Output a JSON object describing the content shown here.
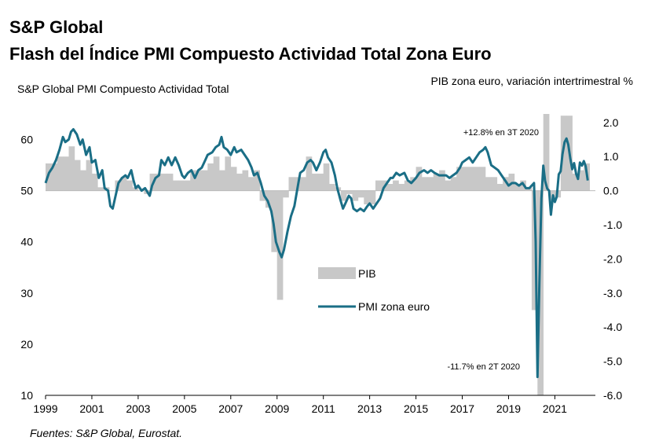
{
  "header": {
    "title": "S&P Global",
    "subtitle": "Flash del Índice PMI Compuesto Actividad Total Zona Euro"
  },
  "source": "Fuentes: S&P Global, Eurostat.",
  "chart_data": {
    "type": "bar+line",
    "left_axis_label": "S&P Global PMI  Compuesto  Actividad Total",
    "right_axis_label": "PIB  zona euro,  variación intertrimestral %",
    "left_axis": {
      "min": 10,
      "max": 65,
      "ticks": [
        10,
        20,
        30,
        40,
        50,
        60
      ]
    },
    "right_axis": {
      "min": -6.0,
      "max": 2.25,
      "ticks": [
        "2.0",
        "1.0",
        "0.0",
        "-1.0",
        "-2.0",
        "-3.0",
        "-4.0",
        "-5.0",
        "-6.0"
      ]
    },
    "x_axis": {
      "min": 1999,
      "max": 2022.75,
      "ticks": [
        "1999",
        "2001",
        "2003",
        "2005",
        "2007",
        "2009",
        "2011",
        "2013",
        "2015",
        "2017",
        "2019",
        "2021"
      ]
    },
    "legend": [
      {
        "key": "gdp",
        "label": "PIB",
        "color": "#c8c8c8"
      },
      {
        "key": "pmi",
        "label": "PMI zona euro",
        "color": "#1a6e86"
      }
    ],
    "annotations": [
      {
        "text": "+12.8%  en 3T 2020"
      },
      {
        "text": "-11.7%  en 2T 2020"
      }
    ],
    "series": [
      {
        "name": "PIB",
        "unit": "%",
        "points": [
          [
            1999.0,
            0.8
          ],
          [
            1999.25,
            0.8
          ],
          [
            1999.5,
            1.0
          ],
          [
            1999.75,
            1.0
          ],
          [
            2000.0,
            1.3
          ],
          [
            2000.25,
            0.9
          ],
          [
            2000.5,
            0.6
          ],
          [
            2000.75,
            0.9
          ],
          [
            2001.0,
            0.5
          ],
          [
            2001.25,
            0.1
          ],
          [
            2001.5,
            0.1
          ],
          [
            2001.75,
            0.0
          ],
          [
            2002.0,
            0.3
          ],
          [
            2002.25,
            0.4
          ],
          [
            2002.5,
            0.3
          ],
          [
            2002.75,
            0.1
          ],
          [
            2003.0,
            0.0
          ],
          [
            2003.25,
            -0.1
          ],
          [
            2003.5,
            0.5
          ],
          [
            2003.75,
            0.5
          ],
          [
            2004.0,
            0.5
          ],
          [
            2004.25,
            0.5
          ],
          [
            2004.5,
            0.3
          ],
          [
            2004.75,
            0.3
          ],
          [
            2005.0,
            0.3
          ],
          [
            2005.25,
            0.6
          ],
          [
            2005.5,
            0.6
          ],
          [
            2005.75,
            0.6
          ],
          [
            2006.0,
            0.8
          ],
          [
            2006.25,
            1.0
          ],
          [
            2006.5,
            0.6
          ],
          [
            2006.75,
            1.0
          ],
          [
            2007.0,
            0.7
          ],
          [
            2007.25,
            0.5
          ],
          [
            2007.5,
            0.6
          ],
          [
            2007.75,
            0.4
          ],
          [
            2008.0,
            0.6
          ],
          [
            2008.25,
            -0.3
          ],
          [
            2008.5,
            -0.5
          ],
          [
            2008.75,
            -1.8
          ],
          [
            2009.0,
            -3.2
          ],
          [
            2009.25,
            -0.2
          ],
          [
            2009.5,
            0.4
          ],
          [
            2009.75,
            0.4
          ],
          [
            2010.0,
            0.4
          ],
          [
            2010.25,
            1.0
          ],
          [
            2010.5,
            0.5
          ],
          [
            2010.75,
            0.5
          ],
          [
            2011.0,
            0.8
          ],
          [
            2011.25,
            0.2
          ],
          [
            2011.5,
            0.1
          ],
          [
            2011.75,
            -0.3
          ],
          [
            2012.0,
            -0.1
          ],
          [
            2012.25,
            -0.3
          ],
          [
            2012.5,
            -0.2
          ],
          [
            2012.75,
            -0.4
          ],
          [
            2013.0,
            -0.4
          ],
          [
            2013.25,
            0.3
          ],
          [
            2013.5,
            0.3
          ],
          [
            2013.75,
            0.2
          ],
          [
            2014.0,
            0.3
          ],
          [
            2014.25,
            0.2
          ],
          [
            2014.5,
            0.3
          ],
          [
            2014.75,
            0.4
          ],
          [
            2015.0,
            0.7
          ],
          [
            2015.25,
            0.4
          ],
          [
            2015.5,
            0.4
          ],
          [
            2015.75,
            0.5
          ],
          [
            2016.0,
            0.6
          ],
          [
            2016.25,
            0.3
          ],
          [
            2016.5,
            0.4
          ],
          [
            2016.75,
            0.7
          ],
          [
            2017.0,
            0.7
          ],
          [
            2017.25,
            0.7
          ],
          [
            2017.5,
            0.7
          ],
          [
            2017.75,
            0.7
          ],
          [
            2018.0,
            0.4
          ],
          [
            2018.25,
            0.4
          ],
          [
            2018.5,
            0.2
          ],
          [
            2018.75,
            0.4
          ],
          [
            2019.0,
            0.5
          ],
          [
            2019.25,
            0.2
          ],
          [
            2019.5,
            0.3
          ],
          [
            2019.75,
            0.1
          ],
          [
            2020.0,
            -3.5
          ],
          [
            2020.25,
            -11.7
          ],
          [
            2020.5,
            12.8
          ],
          [
            2020.75,
            -0.3
          ],
          [
            2021.0,
            -0.2
          ],
          [
            2021.25,
            2.2
          ],
          [
            2021.5,
            2.2
          ],
          [
            2021.75,
            0.5
          ],
          [
            2022.0,
            0.6
          ],
          [
            2022.25,
            0.8
          ]
        ]
      },
      {
        "name": "PMI zona euro",
        "points": [
          [
            1999.0,
            51.5
          ],
          [
            1999.15,
            53.5
          ],
          [
            1999.3,
            54.5
          ],
          [
            1999.45,
            56.0
          ],
          [
            1999.6,
            58.0
          ],
          [
            1999.75,
            60.5
          ],
          [
            1999.85,
            59.5
          ],
          [
            2000.0,
            60.0
          ],
          [
            2000.1,
            61.5
          ],
          [
            2000.2,
            62.0
          ],
          [
            2000.35,
            61.0
          ],
          [
            2000.5,
            59.0
          ],
          [
            2000.6,
            60.0
          ],
          [
            2000.75,
            57.0
          ],
          [
            2000.9,
            58.5
          ],
          [
            2001.0,
            55.5
          ],
          [
            2001.15,
            56.0
          ],
          [
            2001.3,
            52.5
          ],
          [
            2001.45,
            54.0
          ],
          [
            2001.55,
            50.5
          ],
          [
            2001.7,
            50.0
          ],
          [
            2001.8,
            47.0
          ],
          [
            2001.9,
            46.5
          ],
          [
            2002.0,
            48.5
          ],
          [
            2002.15,
            51.5
          ],
          [
            2002.3,
            52.5
          ],
          [
            2002.45,
            53.0
          ],
          [
            2002.55,
            52.5
          ],
          [
            2002.7,
            54.0
          ],
          [
            2002.8,
            52.0
          ],
          [
            2002.9,
            50.5
          ],
          [
            2003.0,
            51.0
          ],
          [
            2003.15,
            50.0
          ],
          [
            2003.3,
            50.5
          ],
          [
            2003.5,
            49.0
          ],
          [
            2003.6,
            51.0
          ],
          [
            2003.75,
            52.5
          ],
          [
            2003.9,
            53.0
          ],
          [
            2004.0,
            56.0
          ],
          [
            2004.15,
            55.0
          ],
          [
            2004.3,
            56.5
          ],
          [
            2004.45,
            55.0
          ],
          [
            2004.6,
            56.5
          ],
          [
            2004.75,
            55.0
          ],
          [
            2004.9,
            53.0
          ],
          [
            2005.0,
            52.5
          ],
          [
            2005.15,
            53.5
          ],
          [
            2005.3,
            54.0
          ],
          [
            2005.45,
            52.5
          ],
          [
            2005.6,
            54.0
          ],
          [
            2005.75,
            54.5
          ],
          [
            2005.9,
            56.0
          ],
          [
            2006.0,
            57.0
          ],
          [
            2006.2,
            57.5
          ],
          [
            2006.35,
            58.5
          ],
          [
            2006.5,
            59.0
          ],
          [
            2006.6,
            60.5
          ],
          [
            2006.7,
            58.5
          ],
          [
            2006.85,
            58.0
          ],
          [
            2007.0,
            57.0
          ],
          [
            2007.15,
            58.5
          ],
          [
            2007.25,
            57.5
          ],
          [
            2007.45,
            58.0
          ],
          [
            2007.6,
            57.0
          ],
          [
            2007.75,
            56.0
          ],
          [
            2007.9,
            54.5
          ],
          [
            2008.0,
            53.0
          ],
          [
            2008.15,
            53.5
          ],
          [
            2008.3,
            51.5
          ],
          [
            2008.45,
            49.0
          ],
          [
            2008.6,
            48.0
          ],
          [
            2008.75,
            46.0
          ],
          [
            2008.85,
            43.5
          ],
          [
            2008.95,
            40.0
          ],
          [
            2009.1,
            38.0
          ],
          [
            2009.2,
            37.0
          ],
          [
            2009.3,
            38.5
          ],
          [
            2009.45,
            42.0
          ],
          [
            2009.6,
            45.0
          ],
          [
            2009.75,
            47.0
          ],
          [
            2009.9,
            51.0
          ],
          [
            2010.0,
            53.5
          ],
          [
            2010.15,
            54.0
          ],
          [
            2010.3,
            55.5
          ],
          [
            2010.45,
            56.0
          ],
          [
            2010.55,
            55.5
          ],
          [
            2010.7,
            54.0
          ],
          [
            2010.85,
            55.5
          ],
          [
            2011.0,
            57.5
          ],
          [
            2011.1,
            58.0
          ],
          [
            2011.2,
            56.5
          ],
          [
            2011.35,
            55.5
          ],
          [
            2011.5,
            53.0
          ],
          [
            2011.6,
            50.5
          ],
          [
            2011.75,
            48.0
          ],
          [
            2011.85,
            46.5
          ],
          [
            2011.95,
            47.5
          ],
          [
            2012.1,
            49.0
          ],
          [
            2012.2,
            48.5
          ],
          [
            2012.3,
            46.5
          ],
          [
            2012.45,
            46.0
          ],
          [
            2012.6,
            46.5
          ],
          [
            2012.75,
            46.0
          ],
          [
            2012.9,
            47.0
          ],
          [
            2013.0,
            47.5
          ],
          [
            2013.15,
            46.5
          ],
          [
            2013.3,
            47.5
          ],
          [
            2013.45,
            48.5
          ],
          [
            2013.6,
            50.5
          ],
          [
            2013.75,
            51.5
          ],
          [
            2013.9,
            52.5
          ],
          [
            2014.0,
            52.5
          ],
          [
            2014.15,
            53.5
          ],
          [
            2014.3,
            53.0
          ],
          [
            2014.5,
            53.5
          ],
          [
            2014.65,
            52.0
          ],
          [
            2014.8,
            51.5
          ],
          [
            2015.0,
            52.5
          ],
          [
            2015.15,
            53.5
          ],
          [
            2015.35,
            54.0
          ],
          [
            2015.5,
            53.5
          ],
          [
            2015.65,
            54.0
          ],
          [
            2015.8,
            53.5
          ],
          [
            2016.0,
            53.0
          ],
          [
            2016.15,
            53.0
          ],
          [
            2016.3,
            53.0
          ],
          [
            2016.45,
            52.5
          ],
          [
            2016.6,
            53.0
          ],
          [
            2016.75,
            53.5
          ],
          [
            2016.9,
            54.5
          ],
          [
            2017.0,
            55.5
          ],
          [
            2017.15,
            56.0
          ],
          [
            2017.3,
            56.5
          ],
          [
            2017.45,
            55.5
          ],
          [
            2017.6,
            56.5
          ],
          [
            2017.75,
            57.5
          ],
          [
            2017.9,
            58.0
          ],
          [
            2018.0,
            58.5
          ],
          [
            2018.1,
            57.5
          ],
          [
            2018.25,
            55.0
          ],
          [
            2018.4,
            54.5
          ],
          [
            2018.55,
            54.0
          ],
          [
            2018.7,
            53.0
          ],
          [
            2018.85,
            52.0
          ],
          [
            2019.0,
            51.0
          ],
          [
            2019.15,
            51.5
          ],
          [
            2019.3,
            51.5
          ],
          [
            2019.45,
            51.0
          ],
          [
            2019.6,
            51.5
          ],
          [
            2019.75,
            50.5
          ],
          [
            2019.9,
            50.5
          ],
          [
            2020.0,
            51.0
          ],
          [
            2020.1,
            51.5
          ],
          [
            2020.17,
            40.0
          ],
          [
            2020.25,
            13.6
          ],
          [
            2020.33,
            31.9
          ],
          [
            2020.42,
            48.5
          ],
          [
            2020.5,
            54.9
          ],
          [
            2020.58,
            51.9
          ],
          [
            2020.67,
            50.4
          ],
          [
            2020.75,
            50.0
          ],
          [
            2020.83,
            45.3
          ],
          [
            2020.92,
            49.1
          ],
          [
            2021.0,
            47.8
          ],
          [
            2021.08,
            48.8
          ],
          [
            2021.17,
            53.2
          ],
          [
            2021.25,
            53.8
          ],
          [
            2021.33,
            57.1
          ],
          [
            2021.42,
            59.5
          ],
          [
            2021.5,
            60.2
          ],
          [
            2021.58,
            59.0
          ],
          [
            2021.67,
            56.2
          ],
          [
            2021.75,
            54.2
          ],
          [
            2021.83,
            55.4
          ],
          [
            2021.92,
            53.3
          ],
          [
            2022.0,
            52.3
          ],
          [
            2022.08,
            55.5
          ],
          [
            2022.17,
            54.9
          ],
          [
            2022.25,
            55.8
          ],
          [
            2022.33,
            54.8
          ],
          [
            2022.42,
            52.0
          ]
        ]
      }
    ]
  }
}
